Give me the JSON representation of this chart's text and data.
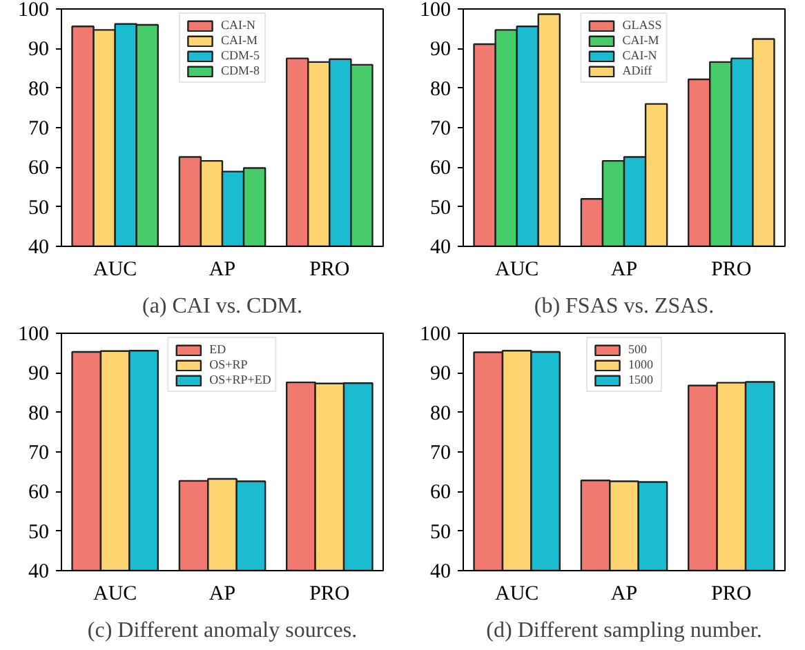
{
  "chart_data": [
    {
      "type": "bar",
      "title": "(a) CAI vs. CDM.",
      "categories": [
        "AUC",
        "AP",
        "PRO"
      ],
      "ylim": [
        40,
        100
      ],
      "yticks": [
        40,
        50,
        60,
        70,
        80,
        90,
        100
      ],
      "legend": "top",
      "grid": false,
      "series": [
        {
          "name": "CAI-N",
          "color": "#f27970",
          "values": [
            95.6,
            62.6,
            87.5
          ]
        },
        {
          "name": "CAI-M",
          "color": "#fed470",
          "values": [
            94.7,
            61.6,
            86.6
          ]
        },
        {
          "name": "CDM-5",
          "color": "#1bbccf",
          "values": [
            96.2,
            58.9,
            87.3
          ]
        },
        {
          "name": "CDM-8",
          "color": "#47cc6a",
          "values": [
            96.0,
            59.8,
            85.9
          ]
        }
      ]
    },
    {
      "type": "bar",
      "title": "(b) FSAS vs. ZSAS.",
      "categories": [
        "AUC",
        "AP",
        "PRO"
      ],
      "ylim": [
        40,
        100
      ],
      "yticks": [
        40,
        50,
        60,
        70,
        80,
        90,
        100
      ],
      "legend": "top",
      "grid": false,
      "series": [
        {
          "name": "GLASS",
          "color": "#f27970",
          "values": [
            91.1,
            52.0,
            82.2
          ]
        },
        {
          "name": "CAI-M",
          "color": "#47cc6a",
          "values": [
            94.7,
            61.6,
            86.6
          ]
        },
        {
          "name": "CAI-N",
          "color": "#1bbccf",
          "values": [
            95.6,
            62.6,
            87.5
          ]
        },
        {
          "name": "ADiff",
          "color": "#fed470",
          "values": [
            98.7,
            76.0,
            92.4
          ]
        }
      ]
    },
    {
      "type": "bar",
      "title": "(c) Different anomaly sources.",
      "categories": [
        "AUC",
        "AP",
        "PRO"
      ],
      "ylim": [
        40,
        100
      ],
      "yticks": [
        40,
        50,
        60,
        70,
        80,
        90,
        100
      ],
      "legend": "top",
      "grid": false,
      "series": [
        {
          "name": "ED",
          "color": "#f27970",
          "values": [
            95.3,
            62.7,
            87.6
          ]
        },
        {
          "name": "OS+RP",
          "color": "#fed470",
          "values": [
            95.5,
            63.2,
            87.3
          ]
        },
        {
          "name": "OS+RP+ED",
          "color": "#1bbccf",
          "values": [
            95.6,
            62.6,
            87.4
          ]
        }
      ]
    },
    {
      "type": "bar",
      "title": "(d) Different sampling number.",
      "categories": [
        "AUC",
        "AP",
        "PRO"
      ],
      "ylim": [
        40,
        100
      ],
      "yticks": [
        40,
        50,
        60,
        70,
        80,
        90,
        100
      ],
      "legend": "top",
      "grid": false,
      "series": [
        {
          "name": "500",
          "color": "#f27970",
          "values": [
            95.2,
            62.8,
            86.8
          ]
        },
        {
          "name": "1000",
          "color": "#fed470",
          "values": [
            95.6,
            62.6,
            87.5
          ]
        },
        {
          "name": "1500",
          "color": "#1bbccf",
          "values": [
            95.3,
            62.4,
            87.7
          ]
        }
      ]
    }
  ]
}
